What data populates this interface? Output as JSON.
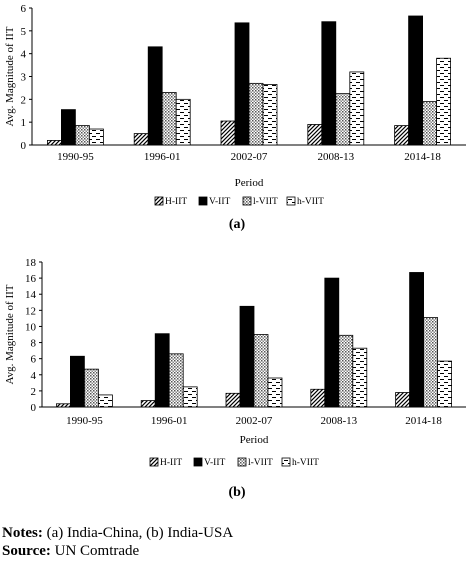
{
  "chart_data": [
    {
      "type": "bar",
      "panel_label": "(a)",
      "xlabel": "Period",
      "ylabel": "Avg. Magnitude of IIT",
      "ylim": [
        0,
        6
      ],
      "yticks": [
        "0",
        "1",
        "2",
        "3",
        "4",
        "5",
        "6"
      ],
      "grid": false,
      "legend_position": "bottom",
      "categories": [
        "1990-95",
        "1996-01",
        "2002-07",
        "2008-13",
        "2014-18"
      ],
      "series": [
        {
          "name": "H-IIT",
          "pattern": "diag",
          "values": [
            0.2,
            0.5,
            1.05,
            0.9,
            0.85
          ]
        },
        {
          "name": "V-IIT",
          "pattern": "solid",
          "values": [
            1.55,
            4.3,
            5.35,
            5.4,
            5.65
          ]
        },
        {
          "name": "l-VIIT",
          "pattern": "dots",
          "values": [
            0.85,
            2.3,
            2.7,
            2.25,
            1.9
          ]
        },
        {
          "name": "h-VIIT",
          "pattern": "dashes",
          "values": [
            0.7,
            2.0,
            2.65,
            3.2,
            3.8
          ]
        }
      ]
    },
    {
      "type": "bar",
      "panel_label": "(b)",
      "xlabel": "Period",
      "ylabel": "Avg. Magnitude of IIT",
      "ylim": [
        0,
        18
      ],
      "yticks": [
        "0",
        "2",
        "4",
        "6",
        "8",
        "10",
        "12",
        "14",
        "16",
        "18"
      ],
      "grid": false,
      "legend_position": "bottom",
      "categories": [
        "1990-95",
        "1996-01",
        "2002-07",
        "2008-13",
        "2014-18"
      ],
      "series": [
        {
          "name": "H-IIT",
          "pattern": "diag",
          "values": [
            0.4,
            0.8,
            1.7,
            2.2,
            1.8
          ]
        },
        {
          "name": "V-IIT",
          "pattern": "solid",
          "values": [
            6.3,
            9.1,
            12.5,
            16.0,
            16.7
          ]
        },
        {
          "name": "l-VIIT",
          "pattern": "dots",
          "values": [
            4.7,
            6.6,
            9.0,
            8.9,
            11.1
          ]
        },
        {
          "name": "h-VIIT",
          "pattern": "dashes",
          "values": [
            1.5,
            2.5,
            3.6,
            7.3,
            5.7
          ]
        }
      ]
    }
  ],
  "notes": {
    "notes_label": "Notes:",
    "notes_text": " (a) India-China, (b) India-USA",
    "source_label": "Source:",
    "source_text": " UN Comtrade"
  }
}
